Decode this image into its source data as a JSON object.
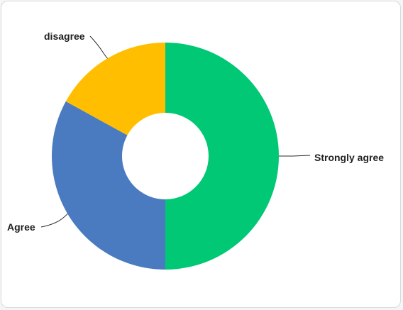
{
  "chart_data": {
    "type": "pie",
    "variant": "donut",
    "title": "",
    "slices": [
      {
        "label": "Strongly agree",
        "value": 50,
        "color": "#00c875"
      },
      {
        "label": "Agree",
        "value": 33,
        "color": "#4a7bc0"
      },
      {
        "label": "disagree",
        "value": 17,
        "color": "#ffbe00"
      }
    ],
    "legend": "none",
    "labels": "outside-with-leader-lines"
  }
}
